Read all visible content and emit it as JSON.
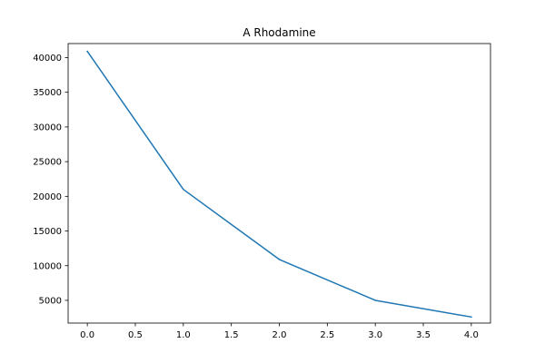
{
  "chart_data": {
    "type": "line",
    "title": "A Rhodamine",
    "xlabel": "",
    "ylabel": "",
    "grid": false,
    "xlim": [
      -0.2,
      4.2
    ],
    "ylim": [
      1725,
      42025
    ],
    "x_ticks": [
      0.0,
      0.5,
      1.0,
      1.5,
      2.0,
      2.5,
      3.0,
      3.5,
      4.0
    ],
    "x_tick_labels": [
      "0.0",
      "0.5",
      "1.0",
      "1.5",
      "2.0",
      "2.5",
      "3.0",
      "3.5",
      "4.0"
    ],
    "y_ticks": [
      5000,
      10000,
      15000,
      20000,
      25000,
      30000,
      35000,
      40000
    ],
    "y_tick_labels": [
      "5000",
      "10000",
      "15000",
      "20000",
      "25000",
      "30000",
      "35000",
      "40000"
    ],
    "series": [
      {
        "color": "#1f77b4",
        "x": [
          0,
          1,
          2,
          3,
          4
        ],
        "y": [
          40900,
          21000,
          10900,
          5000,
          2600
        ]
      }
    ]
  }
}
